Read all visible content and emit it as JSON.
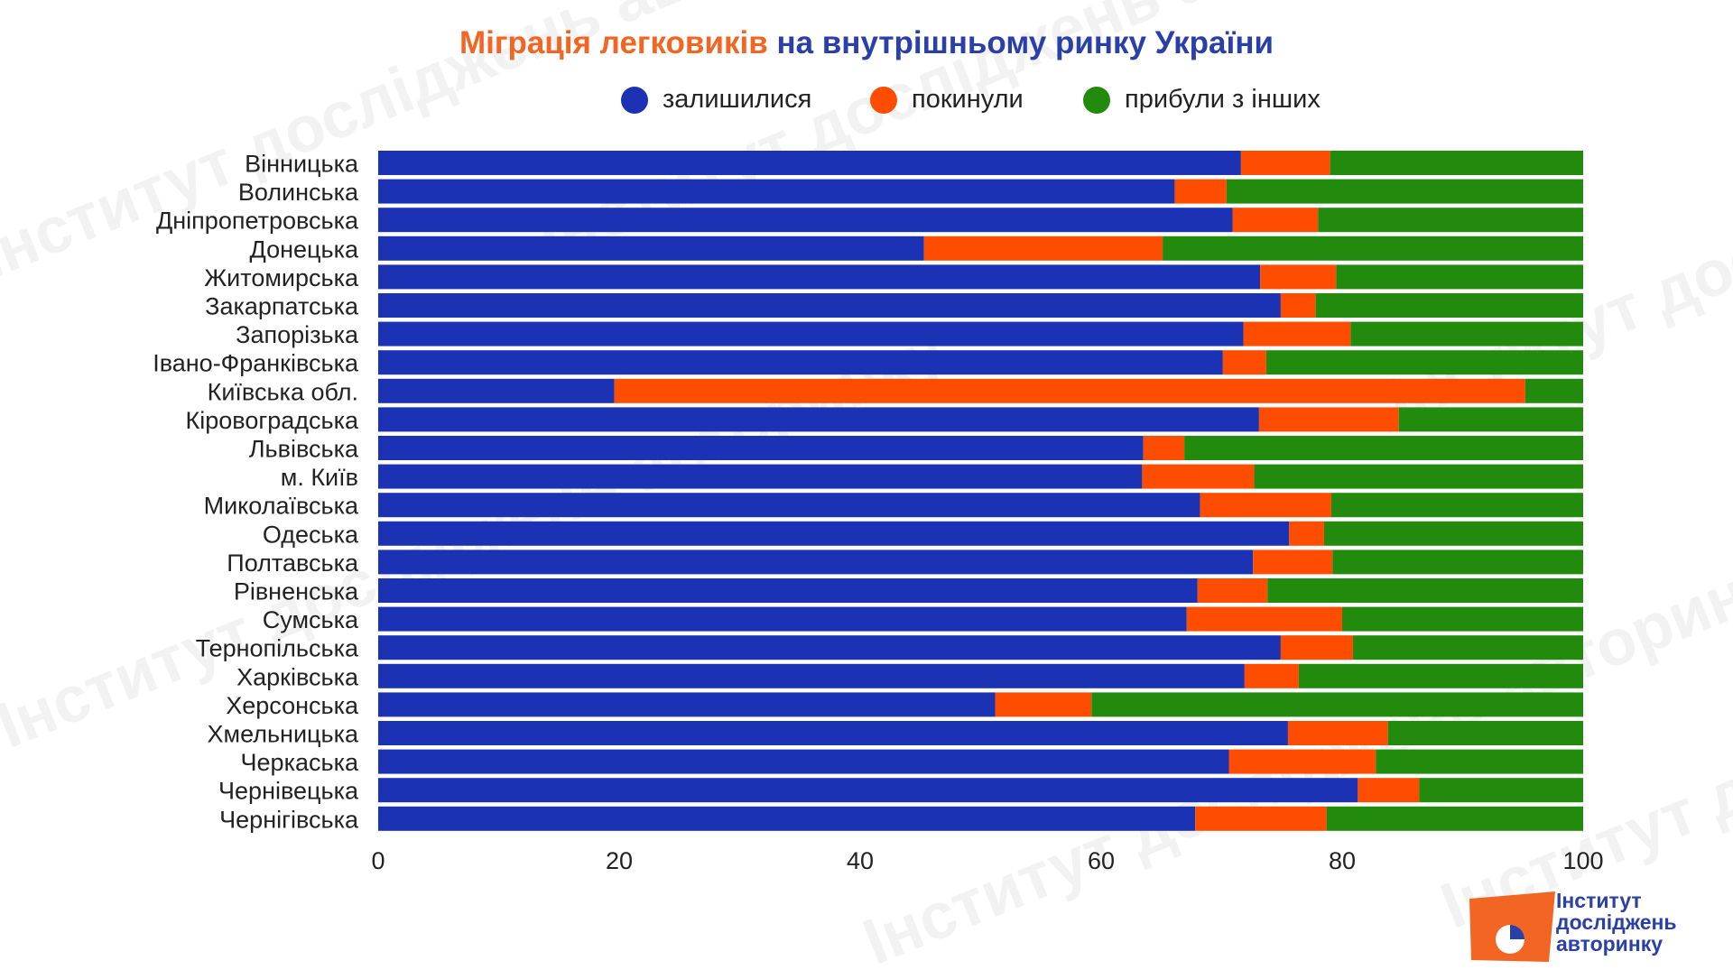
{
  "title": {
    "highlight": "Міграція легковиків",
    "rest": "на внутрішньому ринку України"
  },
  "legend": [
    {
      "label": "залишилися",
      "color": "#1b32b5"
    },
    {
      "label": "покинули",
      "color": "#ff4d00"
    },
    {
      "label": "прибули з інших",
      "color": "#228b0e"
    }
  ],
  "logo": {
    "line1": "Інститут",
    "line2": "досліджень",
    "line3": "авторинку"
  },
  "watermark": "Інститут досліджень авторинку",
  "chart_data": {
    "type": "bar",
    "orientation": "horizontal",
    "stacked": true,
    "xlim": [
      0,
      100
    ],
    "xticks": [
      "0",
      "20",
      "40",
      "60",
      "80",
      "100"
    ],
    "grid": false,
    "legend_position": "top",
    "categories": [
      "Вінницька",
      "Волинська",
      "Дніпропетровська",
      "Донецька",
      "Житомирська",
      "Закарпатська",
      "Запорізька",
      "Івано-Франківська",
      "Київська обл.",
      "Кіровоградська",
      "Львівська",
      "м. Київ",
      "Миколаївська",
      "Одеська",
      "Полтавська",
      "Рівненська",
      "Сумська",
      "Тернопільська",
      "Харківська",
      "Херсонська",
      "Хмельницька",
      "Черкаська",
      "Чернівецька",
      "Чернігівська"
    ],
    "series": [
      {
        "name": "залишилися",
        "color": "#1b32b5",
        "values": [
          71.6,
          66.1,
          70.9,
          45.3,
          73.2,
          74.9,
          71.8,
          70.1,
          19.6,
          73.1,
          63.5,
          63.4,
          68.2,
          75.6,
          72.6,
          68.0,
          67.1,
          74.9,
          71.9,
          51.2,
          75.5,
          70.6,
          81.3,
          67.8
        ],
        "labels": []
      },
      {
        "name": "покинули",
        "color": "#ff4d00",
        "values": [
          7.4,
          4.3,
          7.1,
          19.8,
          6.3,
          2.9,
          8.9,
          3.6,
          75.6,
          11.6,
          3.4,
          9.3,
          10.9,
          2.9,
          6.6,
          5.8,
          12.9,
          6.0,
          4.5,
          8.0,
          8.3,
          12.2,
          5.1,
          10.9
        ]
      },
      {
        "name": "прибули з інших",
        "color": "#228b0e",
        "values": [
          21.0,
          29.6,
          22.0,
          34.9,
          20.5,
          22.2,
          19.3,
          26.3,
          4.8,
          15.3,
          33.1,
          27.3,
          20.9,
          21.5,
          20.8,
          26.2,
          20.0,
          19.1,
          23.6,
          40.8,
          16.2,
          17.2,
          13.6,
          21.3
        ]
      }
    ]
  }
}
